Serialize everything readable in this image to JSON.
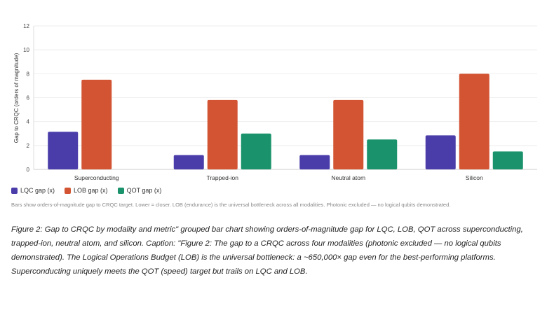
{
  "chart_data": {
    "type": "bar",
    "title": "",
    "xlabel": "",
    "ylabel": "Gap to CRQC (orders of magnitude)",
    "ylim": [
      0,
      12
    ],
    "yticks": [
      0,
      2,
      4,
      6,
      8,
      10,
      12
    ],
    "grid": true,
    "legend_position": "bottom-left",
    "categories": [
      "Superconducting",
      "Trapped-ion",
      "Neutral atom",
      "Silicon"
    ],
    "series": [
      {
        "name": "LQC gap (x)",
        "color": "#4a3daa",
        "values": [
          3.15,
          1.2,
          1.2,
          2.85
        ]
      },
      {
        "name": "LOB gap (x)",
        "color": "#d35433",
        "values": [
          7.5,
          5.8,
          5.8,
          8.0
        ]
      },
      {
        "name": "QOT gap (x)",
        "color": "#1a936c",
        "values": [
          0,
          3.0,
          2.5,
          1.5
        ]
      }
    ]
  },
  "note": "Bars show orders-of-magnitude gap to CRQC target. Lower = closer. LOB (endurance) is the universal bottleneck across all modalities. Photonic excluded — no logical qubits demonstrated.",
  "caption": "Figure 2: Gap to CRQC by modality and metric\" grouped bar chart showing orders-of-magnitude gap for LQC, LOB, QOT across superconducting, trapped-ion, neutral atom, and silicon. Caption: \"Figure 2: The gap to a CRQC across four modalities (photonic excluded — no logical qubits demonstrated). The Logical Operations Budget (LOB) is the universal bottleneck: a ~650,000× gap even for the best-performing platforms. Superconducting uniquely meets the QOT (speed) target but trails on LQC and LOB."
}
